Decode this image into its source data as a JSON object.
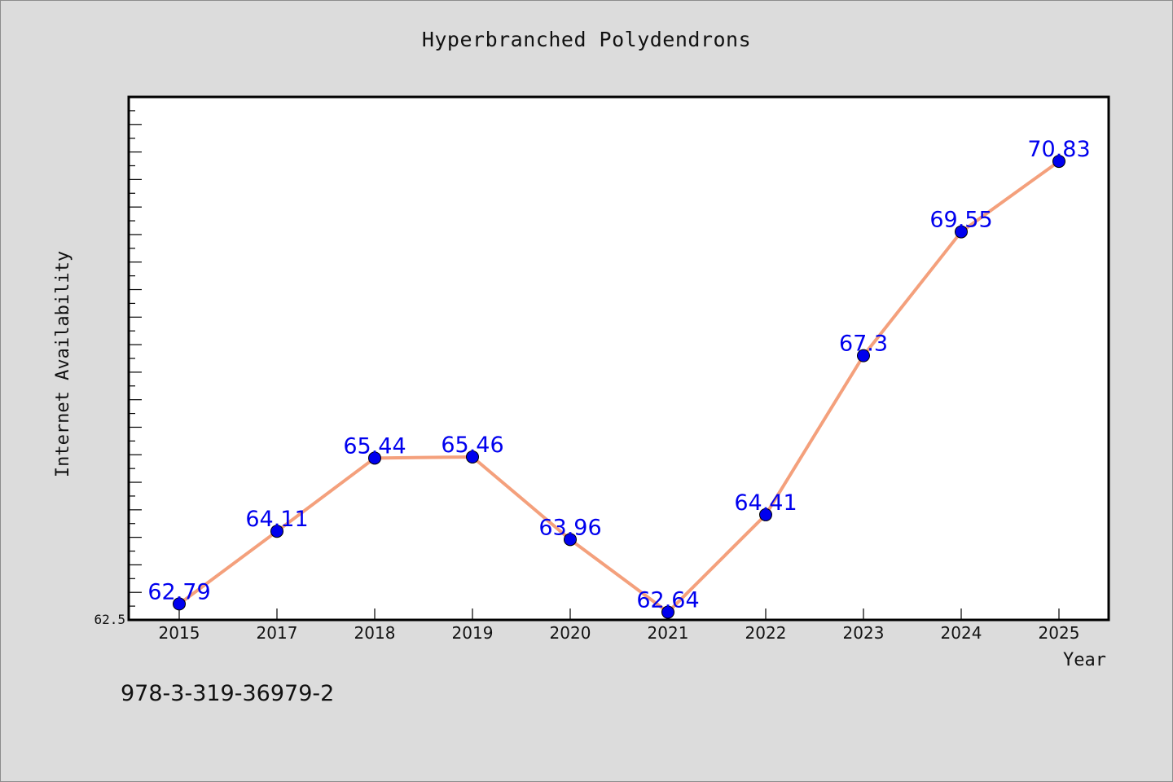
{
  "chart_data": {
    "type": "line",
    "title": "Hyperbranched Polydendrons",
    "xlabel": "Year",
    "ylabel": "Internet Availability",
    "categories": [
      "2015",
      "2017",
      "2018",
      "2019",
      "2020",
      "2021",
      "2022",
      "2023",
      "2024",
      "2025"
    ],
    "series": [
      {
        "values": [
          62.79,
          64.11,
          65.44,
          65.46,
          63.96,
          62.64,
          64.41,
          67.3,
          69.55,
          70.83
        ],
        "labels": [
          "62.79",
          "64.11",
          "65.44",
          "65.46",
          "63.96",
          "62.64",
          "64.41",
          "67.3",
          "69.55",
          "70.83"
        ],
        "line_color": "#f4a07c",
        "marker_color": "#0000ee",
        "label_color": "#0000ee"
      }
    ],
    "ylim": [
      62.5,
      72
    ],
    "ytick_labels": [
      "62.5"
    ],
    "grid": false,
    "legend": "none",
    "plot_background": "#ffffff",
    "page_background": "#dcdcdc"
  },
  "footer": {
    "code": "978-3-319-36979-2"
  }
}
